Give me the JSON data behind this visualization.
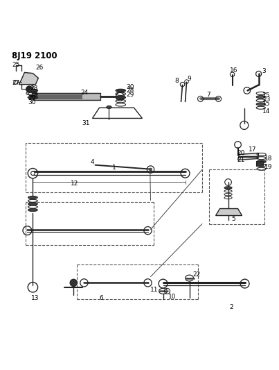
{
  "title": "8J19 2100",
  "bg_color": "#ffffff",
  "line_color": "#222222",
  "figsize": [
    4.03,
    5.33
  ],
  "dpi": 100
}
